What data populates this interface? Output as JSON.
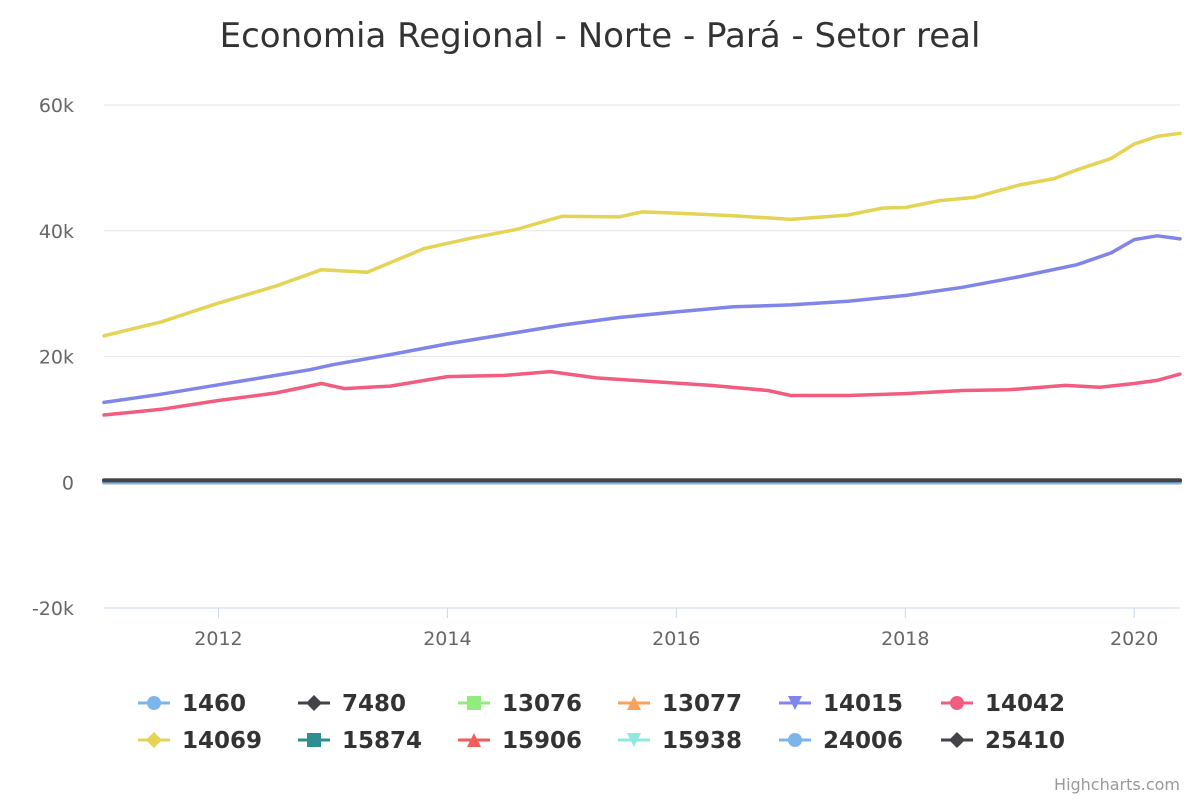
{
  "chart_data": {
    "type": "line",
    "title": "Economia Regional - Norte - Pará - Setor real",
    "credits": "Highcharts.com",
    "x_start": "2011-01",
    "x_end": "2020-05",
    "x_ticks": [
      "2012",
      "2014",
      "2016",
      "2018",
      "2020"
    ],
    "y_ticks": [
      "-20k",
      "0",
      "20k",
      "40k",
      "60k"
    ],
    "ylim": [
      -20000,
      60000
    ],
    "grid": true,
    "legend_position": "bottom",
    "series": [
      {
        "name": "1460",
        "color": "#7cb5ec",
        "marker": "circle",
        "values": [
          [
            2011.0,
            0
          ],
          [
            2020.4,
            0
          ]
        ]
      },
      {
        "name": "7480",
        "color": "#434348",
        "marker": "diamond",
        "values": [
          [
            2011.0,
            300
          ],
          [
            2020.4,
            300
          ]
        ]
      },
      {
        "name": "13076",
        "color": "#90ed7d",
        "marker": "square",
        "values": [
          [
            2011.0,
            0
          ],
          [
            2020.4,
            0
          ]
        ]
      },
      {
        "name": "13077",
        "color": "#f7a35c",
        "marker": "triangle",
        "values": [
          [
            2011.0,
            0
          ],
          [
            2020.4,
            0
          ]
        ]
      },
      {
        "name": "14015",
        "color": "#8085e9",
        "marker": "triangle-down",
        "values": [
          [
            2011.0,
            12700
          ],
          [
            2011.5,
            14000
          ],
          [
            2012.0,
            15500
          ],
          [
            2012.5,
            17000
          ],
          [
            2012.8,
            17900
          ],
          [
            2013.0,
            18700
          ],
          [
            2013.5,
            20300
          ],
          [
            2014.0,
            22000
          ],
          [
            2014.5,
            23500
          ],
          [
            2015.0,
            25000
          ],
          [
            2015.5,
            26200
          ],
          [
            2016.0,
            27100
          ],
          [
            2016.5,
            27900
          ],
          [
            2017.0,
            28200
          ],
          [
            2017.5,
            28800
          ],
          [
            2018.0,
            29700
          ],
          [
            2018.5,
            31000
          ],
          [
            2019.0,
            32700
          ],
          [
            2019.5,
            34600
          ],
          [
            2019.8,
            36500
          ],
          [
            2020.0,
            38600
          ],
          [
            2020.2,
            39200
          ],
          [
            2020.4,
            38700
          ]
        ]
      },
      {
        "name": "14042",
        "color": "#f15c80",
        "marker": "circle",
        "values": [
          [
            2011.0,
            10700
          ],
          [
            2011.5,
            11600
          ],
          [
            2012.0,
            13000
          ],
          [
            2012.5,
            14200
          ],
          [
            2012.9,
            15700
          ],
          [
            2013.1,
            14900
          ],
          [
            2013.5,
            15300
          ],
          [
            2014.0,
            16800
          ],
          [
            2014.5,
            17000
          ],
          [
            2014.9,
            17600
          ],
          [
            2015.3,
            16600
          ],
          [
            2015.8,
            16000
          ],
          [
            2016.3,
            15400
          ],
          [
            2016.8,
            14600
          ],
          [
            2017.0,
            13800
          ],
          [
            2017.5,
            13800
          ],
          [
            2018.0,
            14100
          ],
          [
            2018.5,
            14600
          ],
          [
            2018.9,
            14700
          ],
          [
            2019.4,
            15400
          ],
          [
            2019.7,
            15100
          ],
          [
            2020.0,
            15700
          ],
          [
            2020.2,
            16200
          ],
          [
            2020.4,
            17200
          ]
        ]
      },
      {
        "name": "14069",
        "color": "#e4d354",
        "marker": "diamond",
        "values": [
          [
            2011.0,
            23300
          ],
          [
            2011.5,
            25500
          ],
          [
            2012.0,
            28500
          ],
          [
            2012.5,
            31200
          ],
          [
            2012.9,
            33800
          ],
          [
            2013.3,
            33400
          ],
          [
            2013.8,
            37200
          ],
          [
            2014.2,
            38800
          ],
          [
            2014.6,
            40200
          ],
          [
            2015.0,
            42300
          ],
          [
            2015.5,
            42200
          ],
          [
            2015.7,
            43000
          ],
          [
            2016.0,
            42800
          ],
          [
            2016.5,
            42400
          ],
          [
            2017.0,
            41800
          ],
          [
            2017.5,
            42500
          ],
          [
            2017.8,
            43600
          ],
          [
            2018.0,
            43700
          ],
          [
            2018.3,
            44800
          ],
          [
            2018.6,
            45300
          ],
          [
            2019.0,
            47300
          ],
          [
            2019.3,
            48300
          ],
          [
            2019.5,
            49700
          ],
          [
            2019.8,
            51500
          ],
          [
            2020.0,
            53800
          ],
          [
            2020.2,
            55000
          ],
          [
            2020.4,
            55500
          ]
        ]
      },
      {
        "name": "15874",
        "color": "#2b908f",
        "marker": "square",
        "values": [
          [
            2011.0,
            0
          ],
          [
            2020.4,
            0
          ]
        ]
      },
      {
        "name": "15906",
        "color": "#f45b5b",
        "marker": "triangle",
        "values": [
          [
            2011.0,
            0
          ],
          [
            2020.4,
            0
          ]
        ]
      },
      {
        "name": "15938",
        "color": "#91e8e1",
        "marker": "triangle-down",
        "values": [
          [
            2011.0,
            0
          ],
          [
            2020.4,
            0
          ]
        ]
      },
      {
        "name": "24006",
        "color": "#7cb5ec",
        "marker": "circle",
        "values": [
          [
            2011.0,
            0
          ],
          [
            2020.4,
            0
          ]
        ]
      },
      {
        "name": "25410",
        "color": "#434348",
        "marker": "diamond",
        "values": [
          [
            2011.0,
            300
          ],
          [
            2020.4,
            300
          ]
        ]
      }
    ]
  }
}
